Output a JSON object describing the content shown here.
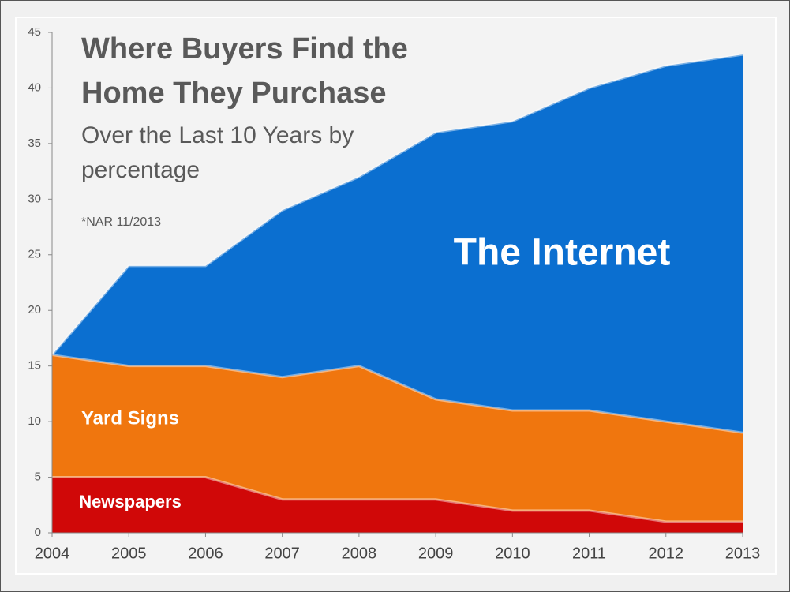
{
  "chart_data": {
    "type": "area",
    "title": "Where Buyers Find the Home They Purchase",
    "subtitle": "Over the Last 10 Years by percentage",
    "note": "*NAR 11/2013",
    "categories": [
      "2004",
      "2005",
      "2006",
      "2007",
      "2008",
      "2009",
      "2010",
      "2011",
      "2012",
      "2013"
    ],
    "series": [
      {
        "name": "The Internet",
        "color": "#0b6fd0",
        "values": [
          16,
          24,
          24,
          29,
          32,
          36,
          37,
          40,
          42,
          43
        ]
      },
      {
        "name": "Yard Signs",
        "color": "#f0760e",
        "values": [
          16,
          15,
          15,
          14,
          15,
          12,
          11,
          11,
          10,
          9
        ]
      },
      {
        "name": "Newspapers",
        "color": "#d00808",
        "values": [
          5,
          5,
          5,
          3,
          3,
          3,
          2,
          2,
          1,
          1
        ]
      }
    ],
    "ylim": [
      0,
      45
    ],
    "yticks": [
      0,
      5,
      10,
      15,
      20,
      25,
      30,
      35,
      40,
      45
    ]
  }
}
